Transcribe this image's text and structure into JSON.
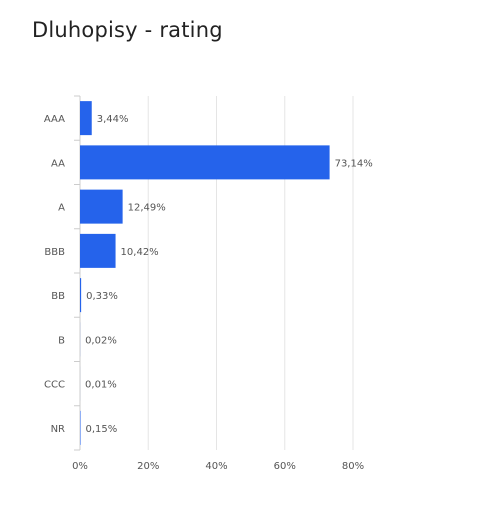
{
  "title": "Dluhopisy - rating",
  "chart_data": {
    "type": "bar",
    "orientation": "horizontal",
    "title": "Dluhopisy - rating",
    "xlabel": "",
    "ylabel": "",
    "categories": [
      "AAA",
      "AA",
      "A",
      "BBB",
      "BB",
      "B",
      "CCC",
      "NR"
    ],
    "values": [
      3.44,
      73.14,
      12.49,
      10.42,
      0.33,
      0.02,
      0.01,
      0.15
    ],
    "data_labels": [
      "3,44%",
      "73,14%",
      "12,49%",
      "10,42%",
      "0,33%",
      "0,02%",
      "0,01%",
      "0,15%"
    ],
    "xlim": [
      0,
      80
    ],
    "x_ticks": [
      0,
      20,
      40,
      60,
      80
    ],
    "x_tick_labels": [
      "0%",
      "20%",
      "40%",
      "60%",
      "80%"
    ],
    "grid": true,
    "legend": "none",
    "colors": {
      "bar": "#2563eb",
      "grid": "#e5e5e5",
      "axis": "#cccccc",
      "text": "#555555"
    }
  }
}
